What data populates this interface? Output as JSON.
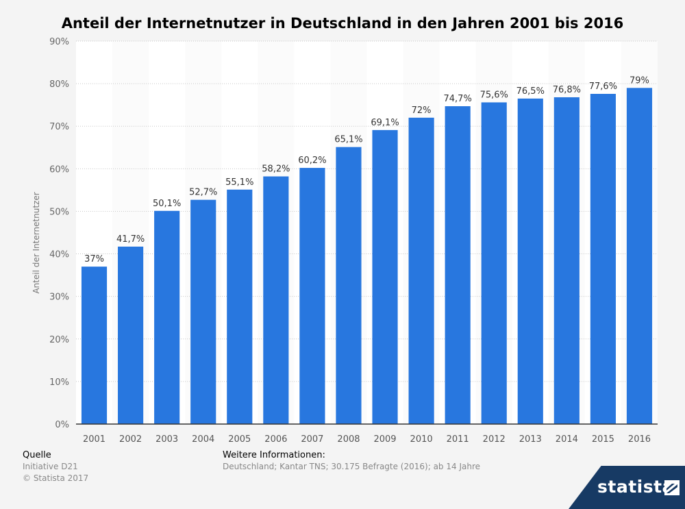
{
  "title": "Anteil der Internetnutzer in Deutschland in den Jahren 2001 bis 2016",
  "source": {
    "heading": "Quelle",
    "line1": "Initiative D21",
    "line2": "© Statista 2017"
  },
  "more_info": {
    "heading": "Weitere Informationen:",
    "text": "Deutschland; Kantar TNS; 30.175 Befragte (2016); ab 14 Jahre"
  },
  "brand": {
    "name": "statista"
  },
  "colors": {
    "bar": "#2877df",
    "band": "#fbfbfb",
    "background": "#f4f4f4"
  },
  "chart_data": {
    "type": "bar",
    "title": "Anteil der Internetnutzer in Deutschland in den Jahren 2001 bis 2016",
    "xlabel": "",
    "ylabel": "Anteil der Internetnutzer",
    "ylim": [
      0,
      90
    ],
    "yticks": [
      0,
      10,
      20,
      30,
      40,
      50,
      60,
      70,
      80,
      90
    ],
    "ytick_labels": [
      "0%",
      "10%",
      "20%",
      "30%",
      "40%",
      "50%",
      "60%",
      "70%",
      "80%",
      "90%"
    ],
    "grid": true,
    "categories": [
      "2001",
      "2002",
      "2003",
      "2004",
      "2005",
      "2006",
      "2007",
      "2008",
      "2009",
      "2010",
      "2011",
      "2012",
      "2013",
      "2014",
      "2015",
      "2016"
    ],
    "values": [
      37,
      41.7,
      50.1,
      52.7,
      55.1,
      58.2,
      60.2,
      65.1,
      69.1,
      72,
      74.7,
      75.6,
      76.5,
      76.8,
      77.6,
      79
    ],
    "value_labels": [
      "37%",
      "41,7%",
      "50,1%",
      "52,7%",
      "55,1%",
      "58,2%",
      "60,2%",
      "65,1%",
      "69,1%",
      "72%",
      "74,7%",
      "75,6%",
      "76,5%",
      "76,8%",
      "77,6%",
      "79%"
    ]
  }
}
